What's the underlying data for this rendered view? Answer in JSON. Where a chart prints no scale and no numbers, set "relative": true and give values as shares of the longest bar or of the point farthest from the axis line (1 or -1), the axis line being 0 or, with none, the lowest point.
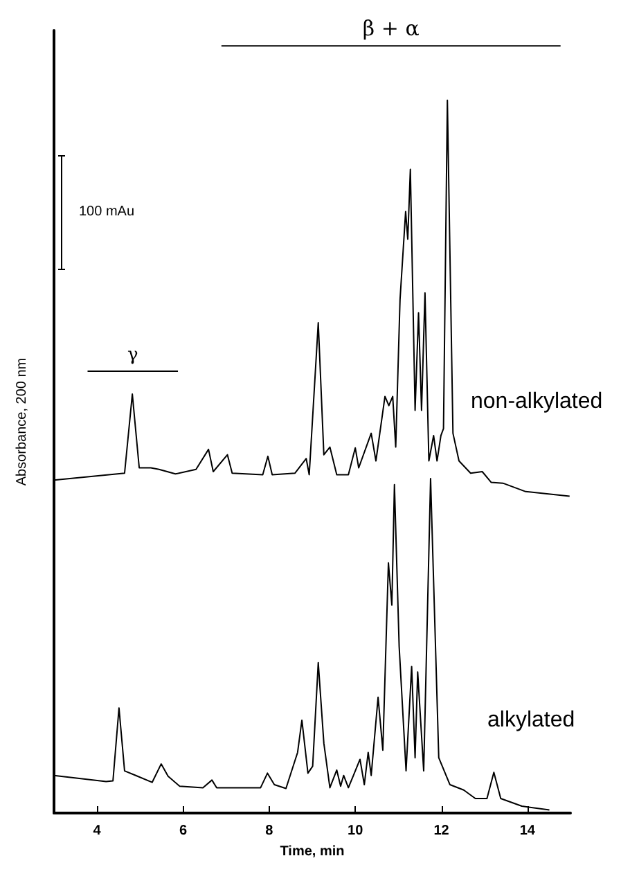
{
  "chart_data": {
    "type": "line",
    "relative": true,
    "xlabel": "Time, min",
    "ylabel": "Absorbance, 200 nm",
    "xlim": [
      3,
      15
    ],
    "xticks": [
      4,
      6,
      8,
      10,
      12,
      14
    ],
    "marker": "none",
    "grid": false,
    "legend": false,
    "annotations": [
      "100 mAu",
      {
        "text": "β + α",
        "x": 10.83,
        "y": 1
      },
      {
        "text": "γ",
        "x": 4.83,
        "y": 0.576
      }
    ],
    "series": [
      {
        "name": "non-alkylated",
        "color": "#000000",
        "x": [
          3.0,
          4.64,
          4.82,
          4.98,
          5.25,
          5.44,
          5.82,
          6.3,
          6.59,
          6.7,
          7.03,
          7.14,
          7.85,
          7.97,
          8.07,
          8.6,
          8.86,
          8.93,
          9.14,
          9.27,
          9.41,
          9.57,
          9.84,
          10.0,
          10.08,
          10.37,
          10.48,
          10.69,
          10.78,
          10.87,
          10.94,
          11.04,
          11.17,
          11.22,
          11.28,
          11.39,
          11.47,
          11.54,
          11.62,
          11.71,
          11.82,
          11.9,
          11.99,
          12.05,
          12.14,
          12.27,
          12.41,
          12.68,
          12.95,
          13.16,
          13.43,
          13.96,
          14.98
        ],
        "values": [
          0.434,
          0.443,
          0.546,
          0.45,
          0.45,
          0.448,
          0.442,
          0.448,
          0.474,
          0.445,
          0.467,
          0.443,
          0.441,
          0.465,
          0.441,
          0.443,
          0.462,
          0.441,
          0.639,
          0.467,
          0.477,
          0.441,
          0.441,
          0.476,
          0.45,
          0.495,
          0.459,
          0.543,
          0.531,
          0.543,
          0.477,
          0.669,
          0.784,
          0.748,
          0.839,
          0.525,
          0.652,
          0.525,
          0.678,
          0.459,
          0.492,
          0.459,
          0.492,
          0.501,
          0.929,
          0.495,
          0.459,
          0.443,
          0.445,
          0.431,
          0.43,
          0.419,
          0.413
        ]
      },
      {
        "name": "alkylated",
        "color": "#000000",
        "x": [
          3.0,
          4.21,
          4.37,
          4.51,
          4.64,
          4.9,
          5.28,
          5.49,
          5.65,
          5.92,
          6.46,
          6.67,
          6.78,
          7.42,
          7.8,
          7.96,
          8.12,
          8.39,
          8.66,
          8.76,
          8.9,
          9.01,
          9.14,
          9.27,
          9.41,
          9.57,
          9.66,
          9.73,
          9.84,
          10.11,
          10.21,
          10.3,
          10.37,
          10.53,
          10.64,
          10.77,
          10.85,
          10.91,
          11.02,
          11.18,
          11.31,
          11.39,
          11.45,
          11.59,
          11.75,
          11.94,
          12.2,
          12.52,
          12.79,
          13.06,
          13.22,
          13.38,
          13.87,
          14.51
        ],
        "values": [
          0.049,
          0.041,
          0.042,
          0.137,
          0.055,
          0.049,
          0.04,
          0.064,
          0.048,
          0.035,
          0.033,
          0.043,
          0.033,
          0.033,
          0.033,
          0.052,
          0.037,
          0.032,
          0.079,
          0.121,
          0.052,
          0.061,
          0.196,
          0.091,
          0.033,
          0.056,
          0.035,
          0.049,
          0.033,
          0.07,
          0.037,
          0.079,
          0.049,
          0.151,
          0.082,
          0.326,
          0.271,
          0.428,
          0.217,
          0.055,
          0.191,
          0.072,
          0.184,
          0.055,
          0.436,
          0.072,
          0.037,
          0.03,
          0.019,
          0.019,
          0.053,
          0.019,
          0.009,
          0.004
        ]
      },
      {
        "color": "#000000",
        "x": [
          6.89,
          14.77
        ],
        "values": [
          1,
          1
        ]
      },
      {
        "color": "#000000",
        "x": [
          3.78,
          5.88
        ],
        "values": [
          0.576,
          0.576
        ]
      }
    ]
  }
}
